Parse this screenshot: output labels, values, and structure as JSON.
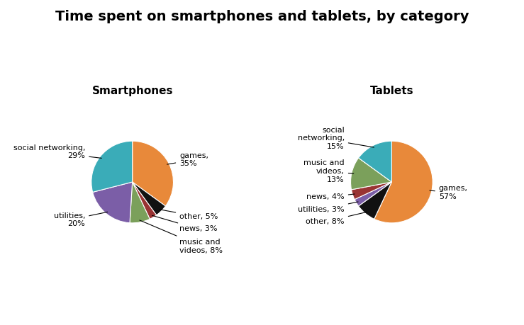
{
  "title": "Time spent on smartphones and tablets, by category",
  "chart_data": [
    {
      "type": "pie",
      "title": "Smartphones",
      "values": [
        35,
        5,
        3,
        8,
        20,
        29
      ],
      "value_labels": [
        "games,\n35%",
        "other, 5%",
        "news, 3%",
        "music and\nvideos, 8%",
        "utilities,\n20%",
        "social networking,\n29%"
      ],
      "colors": [
        "#E8893A",
        "#111111",
        "#993333",
        "#7BA05B",
        "#7B5EA7",
        "#3AACB8"
      ]
    },
    {
      "type": "pie",
      "title": "Tablets",
      "values": [
        57,
        8,
        3,
        4,
        13,
        15
      ],
      "value_labels": [
        "games,\n57%",
        "other, 8%",
        "utilities, 3%",
        "news, 4%",
        "music and\nvideos,\n13%",
        "social\nnetworking,\n15%"
      ],
      "colors": [
        "#E8893A",
        "#111111",
        "#7B5EA7",
        "#993333",
        "#7BA05B",
        "#3AACB8"
      ]
    }
  ]
}
